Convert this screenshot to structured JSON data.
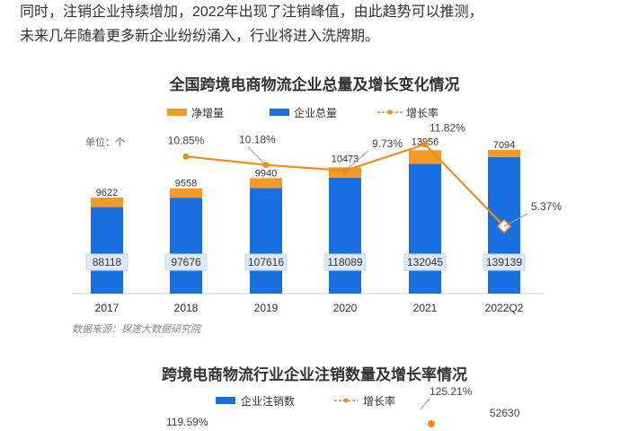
{
  "intro": {
    "line1": "同时，注销企业持续增加，2022年出现了注销峰值，由此趋势可以推测，",
    "line2": "未来几年随着更多新企业纷纷涌入，行业将进入洗牌期。"
  },
  "source_note": "数据来源：探途大数据研究院",
  "colors": {
    "orange": "#f39a26",
    "blue": "#1a6fe0",
    "line": "#f08c1e"
  },
  "chart_data": [
    {
      "type": "bar",
      "title": "全国跨境电商物流企业总量及增长变化情况",
      "unit_label": "单位：个",
      "legend": [
        "净增量",
        "企业总量",
        "增长率"
      ],
      "legend_position": "top",
      "categories": [
        "2017",
        "2018",
        "2019",
        "2020",
        "2021",
        "2022Q2"
      ],
      "series": [
        {
          "name": "企业总量",
          "values": [
            88118,
            97676,
            107616,
            118089,
            132045,
            139139
          ]
        },
        {
          "name": "净增量",
          "values": [
            9622,
            9558,
            9940,
            10473,
            13956,
            7094
          ]
        },
        {
          "name": "增长率",
          "values": [
            10.85,
            10.18,
            9.73,
            11.82,
            5.37
          ],
          "x": [
            "2018",
            "2019",
            "2020",
            "2021",
            "2022Q2"
          ],
          "labels": [
            "10.85%",
            "10.18%",
            "9.73%",
            "11.82%",
            "5.37%"
          ]
        }
      ],
      "ylim": [
        0,
        160000
      ]
    },
    {
      "type": "bar",
      "title": "跨境电商物流行业企业注销数量及增长率情况",
      "legend": [
        "企业注销数",
        "增长率"
      ],
      "legend_position": "top",
      "visible_labels": [
        "125.21%",
        "52630",
        "119.59%"
      ]
    }
  ]
}
